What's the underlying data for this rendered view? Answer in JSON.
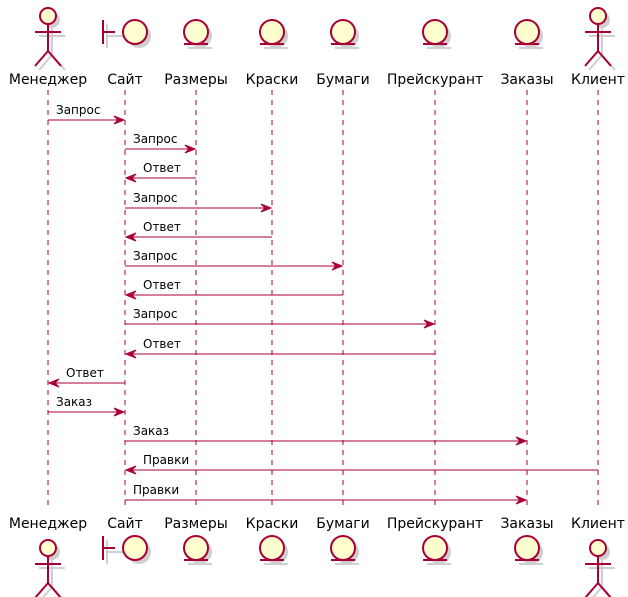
{
  "diagram": {
    "type": "sequence",
    "participants": [
      {
        "id": "manager",
        "label": "Менеджер",
        "kind": "actor"
      },
      {
        "id": "site",
        "label": "Сайт",
        "kind": "boundary"
      },
      {
        "id": "sizes",
        "label": "Размеры",
        "kind": "entity"
      },
      {
        "id": "paints",
        "label": "Краски",
        "kind": "entity"
      },
      {
        "id": "papers",
        "label": "Бумаги",
        "kind": "entity"
      },
      {
        "id": "pricelist",
        "label": "Прейскурант",
        "kind": "entity"
      },
      {
        "id": "orders",
        "label": "Заказы",
        "kind": "entity"
      },
      {
        "id": "client",
        "label": "Клиент",
        "kind": "actor"
      }
    ],
    "messages": [
      {
        "from": "manager",
        "to": "site",
        "label": "Запрос"
      },
      {
        "from": "site",
        "to": "sizes",
        "label": "Запрос"
      },
      {
        "from": "sizes",
        "to": "site",
        "label": "Ответ"
      },
      {
        "from": "site",
        "to": "paints",
        "label": "Запрос"
      },
      {
        "from": "paints",
        "to": "site",
        "label": "Ответ"
      },
      {
        "from": "site",
        "to": "papers",
        "label": "Запрос"
      },
      {
        "from": "papers",
        "to": "site",
        "label": "Ответ"
      },
      {
        "from": "site",
        "to": "pricelist",
        "label": "Запрос"
      },
      {
        "from": "pricelist",
        "to": "site",
        "label": "Ответ"
      },
      {
        "from": "site",
        "to": "manager",
        "label": "Ответ"
      },
      {
        "from": "manager",
        "to": "site",
        "label": "Заказ"
      },
      {
        "from": "site",
        "to": "orders",
        "label": "Заказ"
      },
      {
        "from": "client",
        "to": "site",
        "label": "Правки"
      },
      {
        "from": "site",
        "to": "orders",
        "label": "Правки"
      }
    ],
    "colors": {
      "line": "#A80036",
      "fill": "#FEFECE",
      "shadow": "#cfcfcf"
    }
  }
}
